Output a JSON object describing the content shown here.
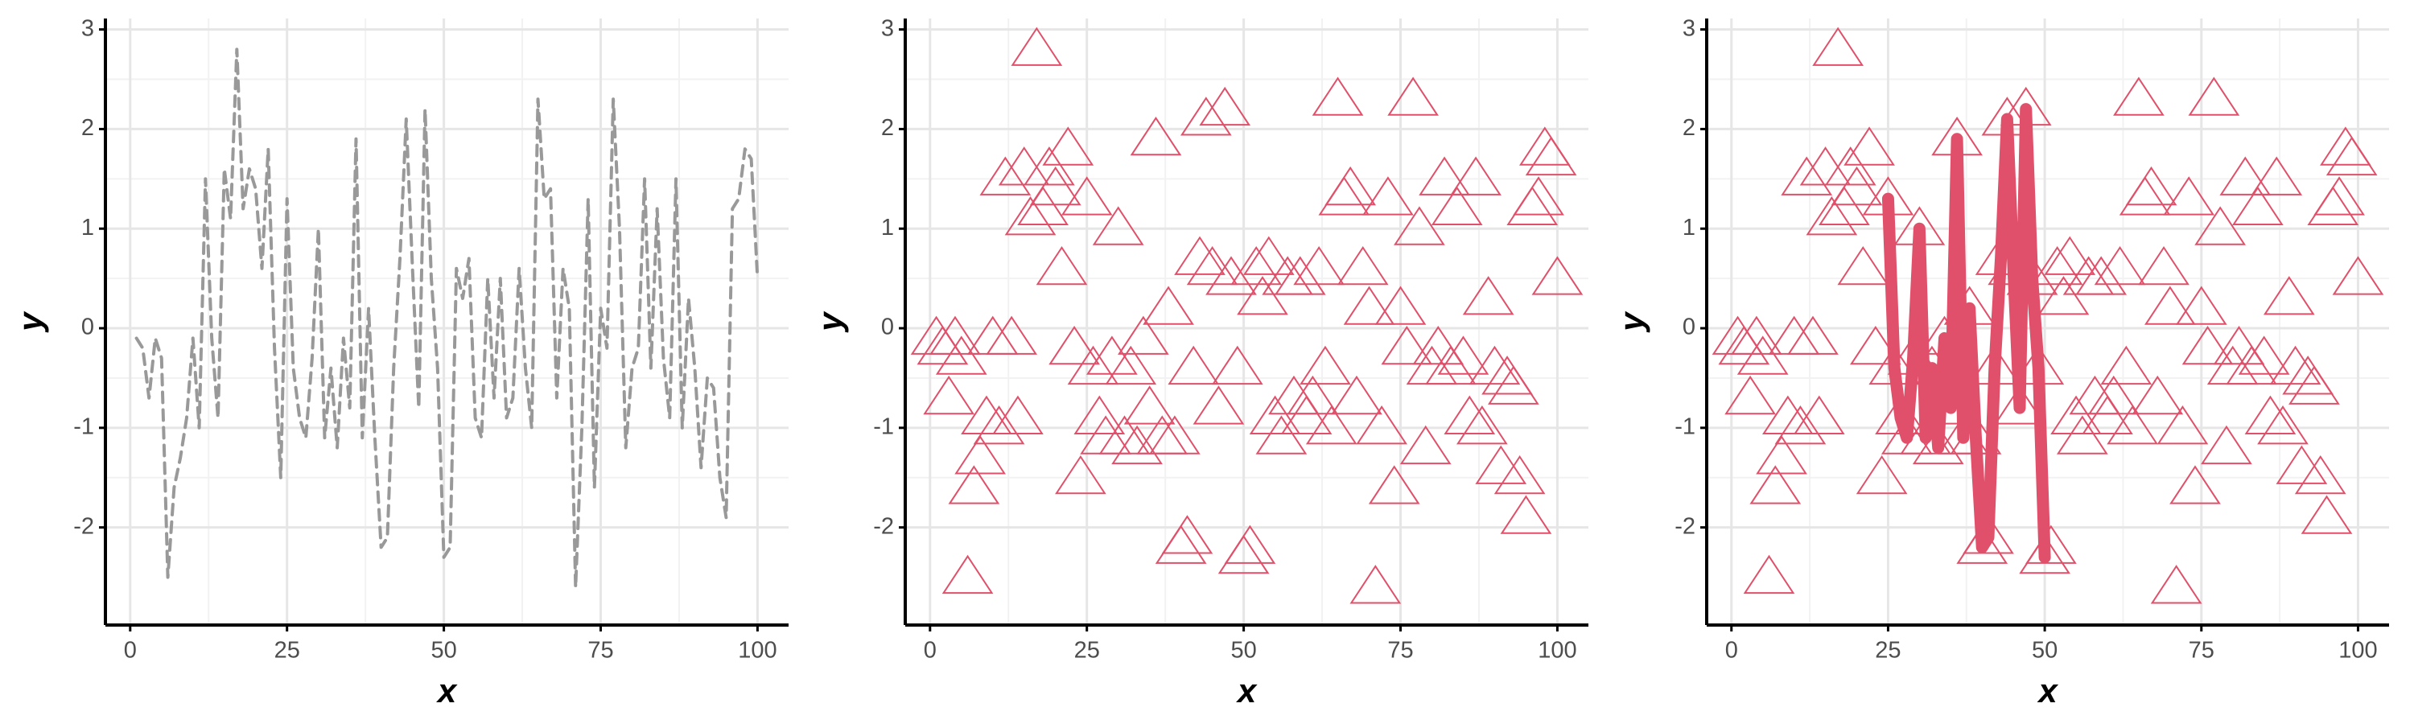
{
  "chart_data": [
    {
      "type": "line",
      "xlabel": "x",
      "ylabel": "y",
      "xlim": [
        -3.95,
        104.95
      ],
      "ylim": [
        -2.98,
        3.11
      ],
      "xticks": [
        0,
        25,
        50,
        75,
        100
      ],
      "yticks": [
        -2,
        -1,
        0,
        1,
        2,
        3
      ],
      "grid": true,
      "series": [
        {
          "type": "line",
          "dash": true,
          "color": "#999999",
          "x": [
            1,
            2,
            3,
            4,
            5,
            6,
            7,
            8,
            9,
            10,
            11,
            12,
            13,
            14,
            15,
            16,
            17,
            18,
            19,
            20,
            21,
            22,
            23,
            24,
            25,
            26,
            27,
            28,
            29,
            30,
            31,
            32,
            33,
            34,
            35,
            36,
            37,
            38,
            39,
            40,
            41,
            42,
            43,
            44,
            45,
            46,
            47,
            48,
            49,
            50,
            51,
            52,
            53,
            54,
            55,
            56,
            57,
            58,
            59,
            60,
            61,
            62,
            63,
            64,
            65,
            66,
            67,
            68,
            69,
            70,
            71,
            72,
            73,
            74,
            75,
            76,
            77,
            78,
            79,
            80,
            81,
            82,
            83,
            84,
            85,
            86,
            87,
            88,
            89,
            90,
            91,
            92,
            93,
            94,
            95,
            96,
            97,
            98,
            99,
            100
          ],
          "values": [
            -0.1,
            -0.2,
            -0.7,
            -0.1,
            -0.3,
            -2.5,
            -1.6,
            -1.3,
            -0.9,
            -0.1,
            -1.0,
            1.5,
            -0.1,
            -0.9,
            1.6,
            1.1,
            2.8,
            1.2,
            1.6,
            1.4,
            0.6,
            1.8,
            -0.2,
            -1.5,
            1.3,
            -0.4,
            -0.9,
            -1.1,
            -0.3,
            1.0,
            -1.1,
            -0.4,
            -1.2,
            -0.1,
            -0.8,
            1.9,
            -1.1,
            0.2,
            -1.1,
            -2.2,
            -2.1,
            -0.4,
            0.7,
            2.1,
            0.6,
            -0.8,
            2.2,
            0.5,
            -0.4,
            -2.3,
            -2.2,
            0.6,
            0.3,
            0.7,
            -0.9,
            -1.1,
            0.5,
            -0.7,
            0.5,
            -0.9,
            -0.7,
            0.6,
            -0.4,
            -1.0,
            2.3,
            1.3,
            1.4,
            -0.7,
            0.6,
            0.2,
            -2.6,
            -1.0,
            1.3,
            -1.6,
            0.2,
            -0.2,
            2.3,
            1.0,
            -1.2,
            -0.4,
            -0.2,
            1.5,
            -0.4,
            1.2,
            -0.3,
            -0.9,
            1.5,
            -1.0,
            0.3,
            -0.4,
            -1.4,
            -0.5,
            -0.6,
            -1.5,
            -1.9,
            1.2,
            1.3,
            1.8,
            1.7,
            0.5
          ]
        }
      ]
    },
    {
      "type": "scatter",
      "xlabel": "x",
      "ylabel": "y",
      "xlim": [
        -3.95,
        104.95
      ],
      "ylim": [
        -2.98,
        3.11
      ],
      "xticks": [
        0,
        25,
        50,
        75,
        100
      ],
      "yticks": [
        -2,
        -1,
        0,
        1,
        2,
        3
      ],
      "grid": true,
      "series": [
        {
          "type": "scatter",
          "color": "#e0506a",
          "x": [
            1,
            2,
            3,
            4,
            5,
            6,
            7,
            8,
            9,
            10,
            11,
            12,
            13,
            14,
            15,
            16,
            17,
            18,
            19,
            20,
            21,
            22,
            23,
            24,
            25,
            26,
            27,
            28,
            29,
            30,
            31,
            32,
            33,
            34,
            35,
            36,
            37,
            38,
            39,
            40,
            41,
            42,
            43,
            44,
            45,
            46,
            47,
            48,
            49,
            50,
            51,
            52,
            53,
            54,
            55,
            56,
            57,
            58,
            59,
            60,
            61,
            62,
            63,
            64,
            65,
            66,
            67,
            68,
            69,
            70,
            71,
            72,
            73,
            74,
            75,
            76,
            77,
            78,
            79,
            80,
            81,
            82,
            83,
            84,
            85,
            86,
            87,
            88,
            89,
            90,
            91,
            92,
            93,
            94,
            95,
            96,
            97,
            98,
            99,
            100
          ],
          "values": [
            -0.1,
            -0.2,
            -0.7,
            -0.1,
            -0.3,
            -2.5,
            -1.6,
            -1.3,
            -0.9,
            -0.1,
            -1.0,
            1.5,
            -0.1,
            -0.9,
            1.6,
            1.1,
            2.8,
            1.2,
            1.6,
            1.4,
            0.6,
            1.8,
            -0.2,
            -1.5,
            1.3,
            -0.4,
            -0.9,
            -1.1,
            -0.3,
            1.0,
            -1.1,
            -0.4,
            -1.2,
            -0.1,
            -0.8,
            1.9,
            -1.1,
            0.2,
            -1.1,
            -2.2,
            -2.1,
            -0.4,
            0.7,
            2.1,
            0.6,
            -0.8,
            2.2,
            0.5,
            -0.4,
            -2.3,
            -2.2,
            0.6,
            0.3,
            0.7,
            -0.9,
            -1.1,
            0.5,
            -0.7,
            0.5,
            -0.9,
            -0.7,
            0.6,
            -0.4,
            -1.0,
            2.3,
            1.3,
            1.4,
            -0.7,
            0.6,
            0.2,
            -2.6,
            -1.0,
            1.3,
            -1.6,
            0.2,
            -0.2,
            2.3,
            1.0,
            -1.2,
            -0.4,
            -0.2,
            1.5,
            -0.4,
            1.2,
            -0.3,
            -0.9,
            1.5,
            -1.0,
            0.3,
            -0.4,
            -1.4,
            -0.5,
            -0.6,
            -1.5,
            -1.9,
            1.2,
            1.3,
            1.8,
            1.7,
            0.5
          ]
        }
      ]
    },
    {
      "type": "scatter",
      "xlabel": "x",
      "ylabel": "y",
      "xlim": [
        -3.95,
        104.95
      ],
      "ylim": [
        -2.98,
        3.11
      ],
      "xticks": [
        0,
        25,
        50,
        75,
        100
      ],
      "yticks": [
        -2,
        -1,
        0,
        1,
        2,
        3
      ],
      "grid": true,
      "series": [
        {
          "type": "scatter",
          "color": "#e0506a",
          "x": [
            1,
            2,
            3,
            4,
            5,
            6,
            7,
            8,
            9,
            10,
            11,
            12,
            13,
            14,
            15,
            16,
            17,
            18,
            19,
            20,
            21,
            22,
            23,
            24,
            25,
            26,
            27,
            28,
            29,
            30,
            31,
            32,
            33,
            34,
            35,
            36,
            37,
            38,
            39,
            40,
            41,
            42,
            43,
            44,
            45,
            46,
            47,
            48,
            49,
            50,
            51,
            52,
            53,
            54,
            55,
            56,
            57,
            58,
            59,
            60,
            61,
            62,
            63,
            64,
            65,
            66,
            67,
            68,
            69,
            70,
            71,
            72,
            73,
            74,
            75,
            76,
            77,
            78,
            79,
            80,
            81,
            82,
            83,
            84,
            85,
            86,
            87,
            88,
            89,
            90,
            91,
            92,
            93,
            94,
            95,
            96,
            97,
            98,
            99,
            100
          ],
          "values": [
            -0.1,
            -0.2,
            -0.7,
            -0.1,
            -0.3,
            -2.5,
            -1.6,
            -1.3,
            -0.9,
            -0.1,
            -1.0,
            1.5,
            -0.1,
            -0.9,
            1.6,
            1.1,
            2.8,
            1.2,
            1.6,
            1.4,
            0.6,
            1.8,
            -0.2,
            -1.5,
            1.3,
            -0.4,
            -0.9,
            -1.1,
            -0.3,
            1.0,
            -1.1,
            -0.4,
            -1.2,
            -0.1,
            -0.8,
            1.9,
            -1.1,
            0.2,
            -1.1,
            -2.2,
            -2.1,
            -0.4,
            0.7,
            2.1,
            0.6,
            -0.8,
            2.2,
            0.5,
            -0.4,
            -2.3,
            -2.2,
            0.6,
            0.3,
            0.7,
            -0.9,
            -1.1,
            0.5,
            -0.7,
            0.5,
            -0.9,
            -0.7,
            0.6,
            -0.4,
            -1.0,
            2.3,
            1.3,
            1.4,
            -0.7,
            0.6,
            0.2,
            -2.6,
            -1.0,
            1.3,
            -1.6,
            0.2,
            -0.2,
            2.3,
            1.0,
            -1.2,
            -0.4,
            -0.2,
            1.5,
            -0.4,
            1.2,
            -0.3,
            -0.9,
            1.5,
            -1.0,
            0.3,
            -0.4,
            -1.4,
            -0.5,
            -0.6,
            -1.5,
            -1.9,
            1.2,
            1.3,
            1.8,
            1.7,
            0.5
          ]
        },
        {
          "type": "line",
          "dash": false,
          "color": "#e0506a",
          "x": [
            25,
            26,
            27,
            28,
            29,
            30,
            31,
            32,
            33,
            34,
            35,
            36,
            37,
            38,
            39,
            40,
            41,
            42,
            43,
            44,
            45,
            46,
            47,
            48,
            49,
            50
          ],
          "values": [
            1.3,
            -0.4,
            -0.9,
            -1.1,
            -0.3,
            1.0,
            -1.1,
            -0.4,
            -1.2,
            -0.1,
            -0.8,
            1.9,
            -1.1,
            0.2,
            -1.1,
            -2.2,
            -2.1,
            -0.4,
            0.7,
            2.1,
            0.6,
            -0.8,
            2.2,
            0.5,
            -0.4,
            -2.3
          ]
        }
      ]
    }
  ]
}
